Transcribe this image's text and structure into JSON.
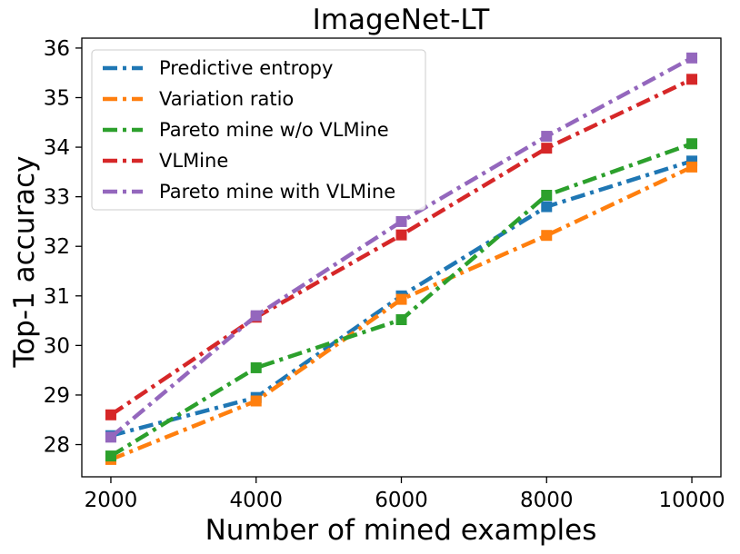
{
  "chart_data": {
    "type": "line",
    "title": "ImageNet-LT",
    "xlabel": "Number of mined examples",
    "ylabel": "Top-1 accuracy",
    "x": [
      2000,
      4000,
      6000,
      8000,
      10000
    ],
    "xticks": [
      2000,
      4000,
      6000,
      8000,
      10000
    ],
    "yticks": [
      28,
      29,
      30,
      31,
      32,
      33,
      34,
      35,
      36
    ],
    "xlim": [
      1600,
      10400
    ],
    "ylim": [
      27.35,
      36.2
    ],
    "legend_position": "upper-left",
    "series": [
      {
        "name": "Predictive entropy",
        "color": "#1f77b4",
        "values": [
          28.18,
          28.95,
          31.0,
          32.8,
          33.72
        ]
      },
      {
        "name": "Variation ratio",
        "color": "#ff7f0e",
        "values": [
          27.7,
          28.88,
          30.93,
          32.22,
          33.6
        ]
      },
      {
        "name": "Pareto mine w/o VLMine",
        "color": "#2ca02c",
        "values": [
          27.77,
          29.55,
          30.52,
          33.03,
          34.07
        ]
      },
      {
        "name": "VLMine",
        "color": "#d62728",
        "values": [
          28.6,
          30.57,
          32.23,
          33.98,
          35.37
        ]
      },
      {
        "name": "Pareto mine with VLMine",
        "color": "#9467bd",
        "values": [
          28.15,
          30.6,
          32.5,
          34.22,
          35.8
        ]
      }
    ]
  }
}
